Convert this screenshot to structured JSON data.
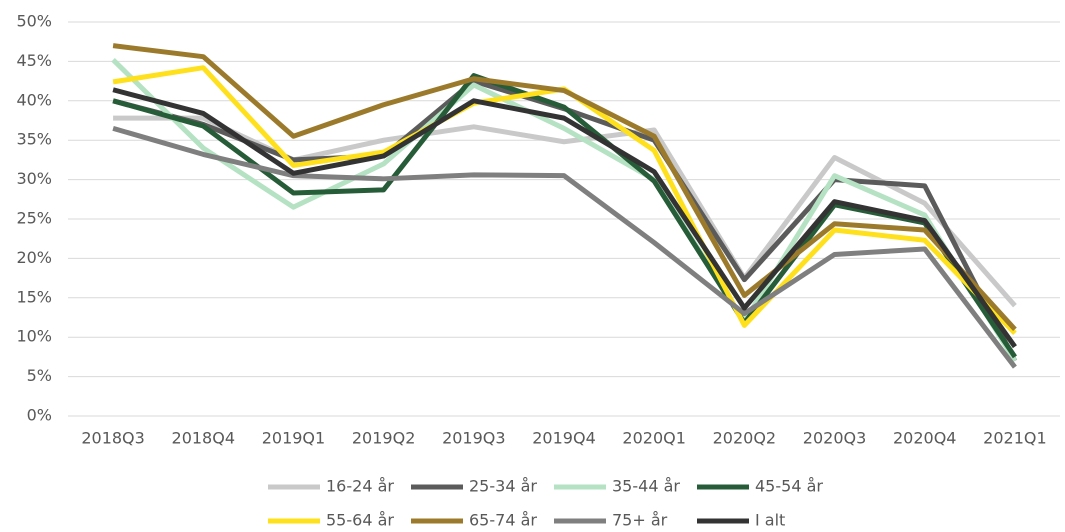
{
  "chart_data": {
    "type": "line",
    "categories": [
      "2018Q3",
      "2018Q4",
      "2019Q1",
      "2019Q2",
      "2019Q3",
      "2019Q4",
      "2020Q1",
      "2020Q2",
      "2020Q3",
      "2020Q4",
      "2021Q1"
    ],
    "series": [
      {
        "name": "16-24 år",
        "color": "#c9c9c9",
        "values": [
          37.8,
          37.8,
          32.5,
          35,
          36.7,
          34.8,
          36.3,
          17.5,
          32.8,
          27,
          14
        ]
      },
      {
        "name": "25-34 år",
        "color": "#5b5b5b",
        "values": [
          40,
          37,
          32.5,
          33,
          42.5,
          39,
          35,
          17.3,
          30,
          29.2,
          7
        ]
      },
      {
        "name": "35-44 år",
        "color": "#b4e2c2",
        "values": [
          45.2,
          34,
          26.5,
          32,
          42,
          36.5,
          30,
          12,
          30.5,
          25.5,
          7
        ]
      },
      {
        "name": "45-54 år",
        "color": "#275c38",
        "values": [
          40,
          36.8,
          28.3,
          28.7,
          43.2,
          39.2,
          29.8,
          11.8,
          26.8,
          24.5,
          7.5
        ]
      },
      {
        "name": "55-64 år",
        "color": "#ffe01c",
        "values": [
          42.4,
          44.2,
          31.8,
          33.5,
          39.7,
          41.5,
          33.7,
          11.5,
          23.6,
          22.3,
          10.5
        ]
      },
      {
        "name": "65-74 år",
        "color": "#9c7a2b",
        "values": [
          47,
          45.6,
          35.5,
          39.5,
          42.8,
          41.3,
          35.5,
          15.3,
          24.4,
          23.6,
          11
        ]
      },
      {
        "name": "75+ år",
        "color": "#7f7f7f",
        "values": [
          36.5,
          33.2,
          30.5,
          30.1,
          30.6,
          30.5,
          22,
          13,
          20.5,
          21.2,
          6.2
        ]
      },
      {
        "name": "I alt",
        "color": "#333333",
        "values": [
          41.4,
          38.4,
          30.8,
          33,
          40,
          37.8,
          31,
          13.7,
          27.2,
          24.8,
          8.8
        ]
      }
    ],
    "ylim": [
      0,
      50
    ],
    "yticks": [
      {
        "value": 0,
        "label": "0%"
      },
      {
        "value": 5,
        "label": "5%"
      },
      {
        "value": 10,
        "label": "10%"
      },
      {
        "value": 15,
        "label": "15%"
      },
      {
        "value": 20,
        "label": "20%"
      },
      {
        "value": 25,
        "label": "25%"
      },
      {
        "value": 30,
        "label": "30%"
      },
      {
        "value": 35,
        "label": "35%"
      },
      {
        "value": 40,
        "label": "40%"
      },
      {
        "value": 45,
        "label": "45%"
      },
      {
        "value": 50,
        "label": "50%"
      }
    ],
    "grid": true,
    "legend": "bottom"
  }
}
